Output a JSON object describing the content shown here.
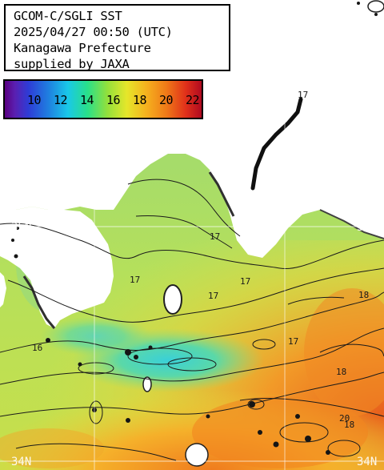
{
  "header": {
    "lines": [
      "GCOM-C/SGLI SST",
      "2025/04/27 00:50 (UTC)",
      "Kanagawa Prefecture",
      "supplied by JAXA"
    ]
  },
  "scale": {
    "labels": [
      "10",
      "12",
      "14",
      "16",
      "18",
      "20",
      "22"
    ],
    "colors": [
      "#5a0080",
      "#2e3cd6",
      "#19c8e8",
      "#29e08a",
      "#e6e62a",
      "#f07a18",
      "#b00a20"
    ]
  },
  "lat_labels": {
    "north": "35N",
    "south": "34N"
  },
  "contour_labels": [
    "17",
    "17",
    "17",
    "17",
    "17",
    "16",
    "17",
    "18",
    "18",
    "18",
    "20"
  ]
}
